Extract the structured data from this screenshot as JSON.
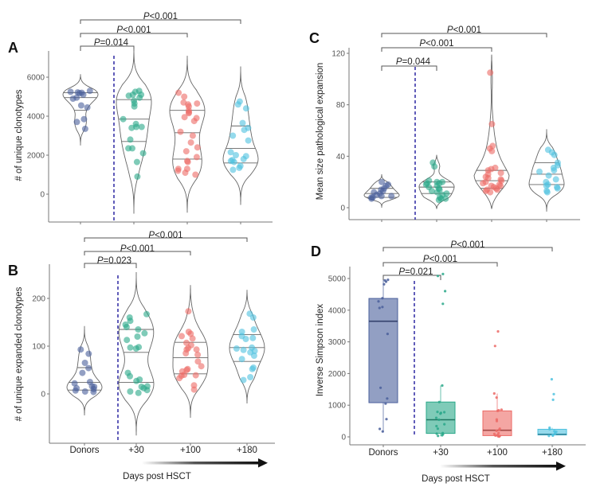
{
  "figure": {
    "x_axis_title": "Days post HSCT",
    "categories": [
      "Donors",
      "+30",
      "+100",
      "+180"
    ],
    "group_colors": [
      "#4a5f9b",
      "#2aa889",
      "#ec6a66",
      "#4fc2df"
    ],
    "divider_color": "#3a35a8"
  },
  "chart_data": [
    {
      "panel": "A",
      "type": "violin",
      "ylabel": "# of unique clonotypes",
      "ylim": [
        -1500,
        7500
      ],
      "yticks": [
        0,
        2000,
        4000,
        6000
      ],
      "show_x_labels": false,
      "categories": [
        "Donors",
        "+30",
        "+100",
        "+180"
      ],
      "series": [
        {
          "name": "Donors",
          "quartiles": [
            4300,
            4950,
            5200
          ],
          "range": [
            2500,
            6150
          ],
          "points": [
            5300,
            5250,
            5200,
            5220,
            5180,
            5100,
            4900,
            4950,
            4550,
            4450,
            3850,
            3700,
            3350
          ]
        },
        {
          "name": "+30",
          "quartiles": [
            2700,
            3850,
            4850
          ],
          "range": [
            -1000,
            7450
          ],
          "points": [
            5300,
            5250,
            5100,
            5050,
            5100,
            4950,
            4800,
            4650,
            4500,
            3850,
            3600,
            3450,
            3400,
            3450,
            2800,
            2350,
            2350,
            2100,
            1650,
            900
          ]
        },
        {
          "name": "+100",
          "quartiles": [
            1800,
            3150,
            4300
          ],
          "range": [
            -950,
            7100
          ],
          "points": [
            5200,
            5000,
            4700,
            4650,
            4600,
            4500,
            4300,
            4200,
            4150,
            3950,
            3900,
            3750,
            3200,
            3000,
            2650,
            2400,
            2200,
            1900,
            1700,
            1650,
            1300,
            1300,
            1200,
            1100,
            1000
          ]
        },
        {
          "name": "+180",
          "quartiles": [
            1600,
            2350,
            3500
          ],
          "range": [
            -550,
            6550
          ],
          "points": [
            4750,
            4600,
            4400,
            3650,
            3400,
            3300,
            3000,
            2750,
            2150,
            2000,
            1950,
            1800,
            1750,
            1700,
            1650,
            1450,
            1350,
            1250
          ]
        }
      ],
      "brackets": [
        {
          "from": "Donors",
          "to": "+30",
          "label_italic": "P",
          "label_rest": "=0.014"
        },
        {
          "from": "Donors",
          "to": "+100",
          "label_italic": "P",
          "label_rest": "<0.001"
        },
        {
          "from": "Donors",
          "to": "+180",
          "label_italic": "P",
          "label_rest": "<0.001"
        }
      ]
    },
    {
      "panel": "B",
      "type": "violin",
      "ylabel": "# of unique expanded clonotypes",
      "ylim": [
        -100,
        270
      ],
      "yticks": [
        0,
        100,
        200
      ],
      "show_x_labels": true,
      "categories": [
        "Donors",
        "+30",
        "+100",
        "+180"
      ],
      "series": [
        {
          "name": "Donors",
          "quartiles": [
            8,
            24,
            55
          ],
          "range": [
            -45,
            142
          ],
          "points": [
            93,
            84,
            65,
            54,
            44,
            25,
            22,
            16,
            15,
            12,
            10,
            7,
            5,
            4
          ]
        },
        {
          "name": "+30",
          "quartiles": [
            24,
            87,
            135
          ],
          "range": [
            -87,
            255
          ],
          "points": [
            167,
            160,
            153,
            145,
            140,
            135,
            127,
            120,
            113,
            98,
            97,
            95,
            44,
            37,
            30,
            27,
            16,
            15,
            12,
            8,
            5,
            2
          ]
        },
        {
          "name": "+100",
          "quartiles": [
            42,
            76,
            108
          ],
          "range": [
            -50,
            228
          ],
          "points": [
            173,
            130,
            126,
            121,
            116,
            107,
            102,
            96,
            93,
            93,
            85,
            82,
            68,
            58,
            52,
            50,
            47,
            40,
            39,
            38,
            33,
            18,
            9
          ]
        },
        {
          "name": "+180",
          "quartiles": [
            68,
            97,
            124
          ],
          "range": [
            -20,
            218
          ],
          "points": [
            168,
            160,
            135,
            130,
            121,
            117,
            115,
            97,
            95,
            92,
            90,
            87,
            80,
            73,
            55,
            52,
            35,
            29
          ]
        }
      ],
      "brackets": [
        {
          "from": "Donors",
          "to": "+30",
          "label_italic": "P",
          "label_rest": "=0.023"
        },
        {
          "from": "Donors",
          "to": "+100",
          "label_italic": "P",
          "label_rest": "<0.001"
        },
        {
          "from": "Donors",
          "to": "+180",
          "label_italic": "P",
          "label_rest": "<0.001"
        }
      ]
    },
    {
      "panel": "C",
      "type": "violin",
      "ylabel": "Mean size pathological expansion",
      "ylim": [
        -9,
        125
      ],
      "yticks": [
        0,
        40,
        80,
        120
      ],
      "show_x_labels": false,
      "categories": [
        "Donors",
        "+30",
        "+100",
        "+180"
      ],
      "series": [
        {
          "name": "Donors",
          "quartiles": [
            8,
            11,
            15
          ],
          "range": [
            0,
            26
          ],
          "points": [
            20,
            18,
            17,
            15,
            14,
            13,
            12,
            11,
            10,
            9,
            9,
            8,
            8,
            7
          ]
        },
        {
          "name": "+30",
          "quartiles": [
            11,
            16,
            20
          ],
          "range": [
            -1,
            41
          ],
          "points": [
            35,
            32,
            21,
            20,
            20,
            19,
            19,
            18,
            17,
            16,
            15,
            14,
            13,
            12,
            11,
            10,
            8,
            7,
            7,
            6
          ]
        },
        {
          "name": "+100",
          "quartiles": [
            15,
            21,
            29
          ],
          "range": [
            -1,
            119
          ],
          "points": [
            105,
            65,
            48,
            46,
            44,
            31,
            30,
            29,
            27,
            26,
            24,
            23,
            22,
            21,
            20,
            19,
            18,
            17,
            17,
            16,
            15,
            14,
            14,
            13,
            12
          ]
        },
        {
          "name": "+180",
          "quartiles": [
            18,
            26,
            35
          ],
          "range": [
            -3,
            61
          ],
          "points": [
            45,
            43,
            41,
            35,
            33,
            31,
            29,
            28,
            25,
            22,
            20,
            18,
            17,
            16,
            15,
            13,
            12
          ]
        }
      ],
      "brackets": [
        {
          "from": "Donors",
          "to": "+30",
          "label_italic": "P",
          "label_rest": "=0.044"
        },
        {
          "from": "Donors",
          "to": "+100",
          "label_italic": "P",
          "label_rest": "<0.001"
        },
        {
          "from": "Donors",
          "to": "+180",
          "label_italic": "P",
          "label_rest": "<0.001"
        }
      ]
    },
    {
      "panel": "D",
      "type": "box",
      "ylabel": "Inverse Simpson index",
      "ylim": [
        -250,
        5400
      ],
      "yticks": [
        0,
        1000,
        2000,
        3000,
        4000,
        5000
      ],
      "show_x_labels": true,
      "categories": [
        "Donors",
        "+30",
        "+100",
        "+180"
      ],
      "series": [
        {
          "name": "Donors",
          "box": [
            1080,
            3650,
            4370
          ],
          "whiskers": [
            150,
            4950
          ],
          "points": [
            4960,
            4940,
            4900,
            4820,
            4380,
            4280,
            4100,
            4070,
            3250,
            1550,
            1210,
            1050,
            560,
            250,
            170
          ]
        },
        {
          "name": "+30",
          "box": [
            110,
            540,
            1100
          ],
          "whiskers": [
            20,
            1620
          ],
          "points": [
            5140,
            5080,
            4600,
            4200,
            1620,
            1100,
            790,
            780,
            760,
            730,
            600,
            540,
            400,
            340,
            260,
            120,
            100,
            80,
            50,
            30
          ]
        },
        {
          "name": "+100",
          "box": [
            40,
            210,
            820
          ],
          "whiskers": [
            0,
            1370
          ],
          "points": [
            3330,
            2870,
            1370,
            1240,
            860,
            840,
            820,
            550,
            500,
            260,
            220,
            190,
            120,
            90,
            60,
            40,
            30,
            20,
            10
          ]
        },
        {
          "name": "+180",
          "box": [
            60,
            80,
            240
          ],
          "whiskers": [
            0,
            290
          ],
          "points": [
            1820,
            1350,
            1170,
            290,
            240,
            180,
            160,
            120,
            90,
            60,
            40,
            30
          ]
        }
      ],
      "brackets": [
        {
          "from": "Donors",
          "to": "+30",
          "label_italic": "P",
          "label_rest": "=0.021"
        },
        {
          "from": "Donors",
          "to": "+100",
          "label_italic": "P",
          "label_rest": "<0.001"
        },
        {
          "from": "Donors",
          "to": "+180",
          "label_italic": "P",
          "label_rest": "<0.001"
        }
      ]
    }
  ]
}
